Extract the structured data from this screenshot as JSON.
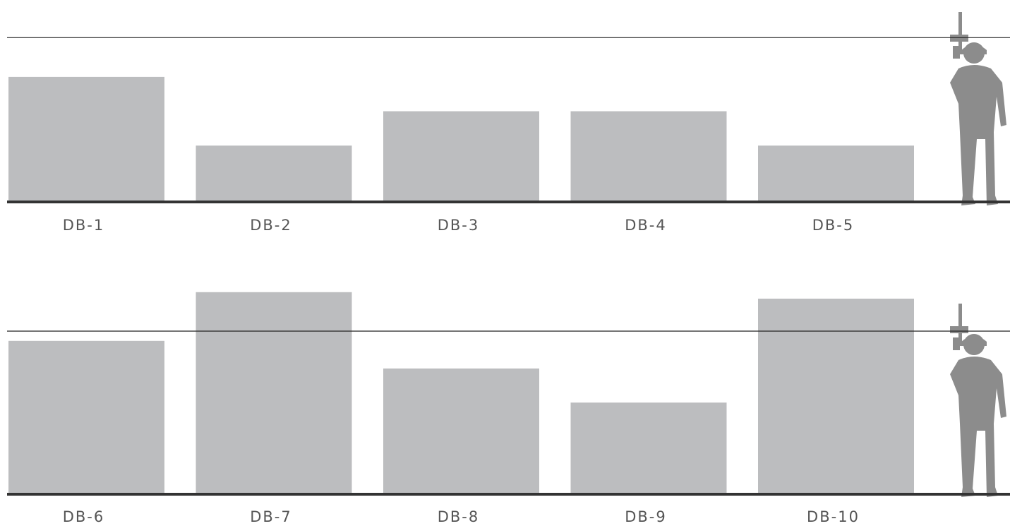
{
  "chart_data": [
    {
      "type": "bar",
      "categories": [
        "DB-1",
        "DB-2",
        "DB-3",
        "DB-4",
        "DB-5"
      ],
      "values": [
        0.76,
        0.34,
        0.55,
        0.55,
        0.34
      ],
      "color": "#bcbdbf",
      "ylim": [
        0,
        1.23
      ],
      "reference_line": 1
    },
    {
      "type": "bar",
      "categories": [
        "DB-6",
        "DB-7",
        "DB-8",
        "DB-9",
        "DB-10"
      ],
      "values": [
        0.94,
        1.24,
        0.77,
        0.56,
        1.2
      ],
      "color": "#bcbdbf",
      "ylim": [
        0,
        1.3
      ],
      "reference_line": 1
    }
  ]
}
